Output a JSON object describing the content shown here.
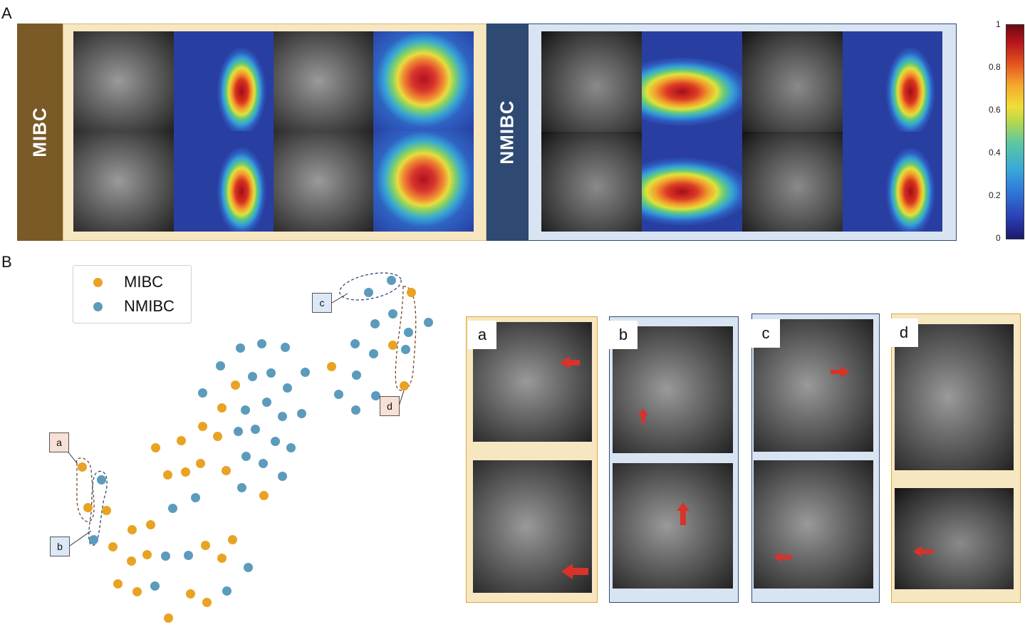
{
  "panel_labels": {
    "A": "A",
    "B": "B"
  },
  "panel_a": {
    "group_labels": {
      "mibc": "MIBC",
      "nmibc": "NMIBC"
    },
    "colorbar_ticks": [
      "1",
      "0.8",
      "0.6",
      "0.4",
      "0.2",
      "0"
    ],
    "colors": {
      "mibc_accent": "#7a5a26",
      "mibc_frame": "#f7e7c1",
      "nmibc_accent": "#2e4a72",
      "nmibc_frame": "#d9e4f3"
    }
  },
  "panel_b": {
    "legend": [
      {
        "label": "MIBC",
        "color": "#e8a323"
      },
      {
        "label": "NMIBC",
        "color": "#5b9bbd"
      }
    ],
    "annotations": {
      "a": "a",
      "b": "b",
      "c": "c",
      "d": "d"
    },
    "chart_data": {
      "type": "scatter",
      "series": [
        {
          "name": "MIBC",
          "points": [
            [
              577,
              410
            ],
            [
              551,
              484
            ],
            [
              465,
              514
            ],
            [
              567,
              541
            ],
            [
              330,
              540
            ],
            [
              311,
              572
            ],
            [
              284,
              598
            ],
            [
              254,
              618
            ],
            [
              218,
              628
            ],
            [
              305,
              612
            ],
            [
              281,
              650
            ],
            [
              260,
              662
            ],
            [
              235,
              666
            ],
            [
              317,
              660
            ],
            [
              370,
              695
            ],
            [
              115,
              655
            ],
            [
              123,
              712
            ],
            [
              149,
              716
            ],
            [
              185,
              743
            ],
            [
              211,
              736
            ],
            [
              158,
              767
            ],
            [
              184,
              787
            ],
            [
              206,
              778
            ],
            [
              288,
              765
            ],
            [
              311,
              783
            ],
            [
              326,
              757
            ],
            [
              165,
              819
            ],
            [
              192,
              830
            ],
            [
              267,
              833
            ],
            [
              290,
              845
            ],
            [
              236,
              867
            ]
          ]
        },
        {
          "name": "NMIBC",
          "points": [
            [
              517,
              410
            ],
            [
              549,
              393
            ],
            [
              551,
              440
            ],
            [
              526,
              454
            ],
            [
              573,
              466
            ],
            [
              601,
              452
            ],
            [
              498,
              482
            ],
            [
              524,
              496
            ],
            [
              569,
              490
            ],
            [
              500,
              526
            ],
            [
              475,
              553
            ],
            [
              527,
              555
            ],
            [
              499,
              575
            ],
            [
              337,
              488
            ],
            [
              367,
              482
            ],
            [
              400,
              487
            ],
            [
              309,
              513
            ],
            [
              354,
              528
            ],
            [
              380,
              523
            ],
            [
              428,
              522
            ],
            [
              403,
              544
            ],
            [
              284,
              551
            ],
            [
              344,
              575
            ],
            [
              374,
              564
            ],
            [
              396,
              584
            ],
            [
              423,
              580
            ],
            [
              334,
              605
            ],
            [
              358,
              602
            ],
            [
              386,
              619
            ],
            [
              408,
              628
            ],
            [
              345,
              640
            ],
            [
              369,
              650
            ],
            [
              396,
              668
            ],
            [
              339,
              684
            ],
            [
              274,
              698
            ],
            [
              242,
              713
            ],
            [
              142,
              673
            ],
            [
              131,
              757
            ],
            [
              232,
              780
            ],
            [
              264,
              779
            ],
            [
              217,
              822
            ],
            [
              318,
              829
            ],
            [
              348,
              796
            ]
          ]
        }
      ]
    },
    "example_labels": [
      "a",
      "b",
      "c",
      "d"
    ]
  }
}
